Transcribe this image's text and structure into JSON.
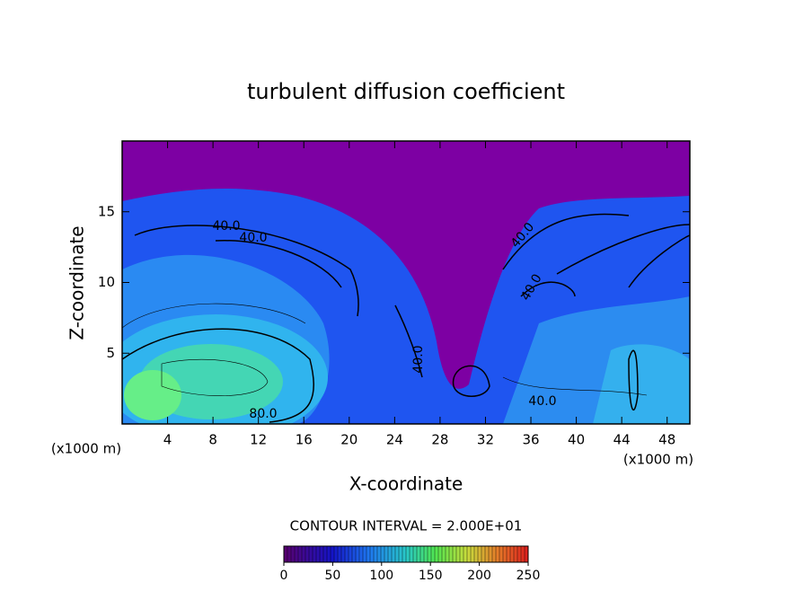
{
  "chart_data": {
    "type": "contour",
    "title": "turbulent diffusion coefficient",
    "x_label": "X-coordinate",
    "y_label": "Z-coordinate",
    "x_unit": "(x1000 m)",
    "y_unit": "(x1000 m)",
    "xlim": [
      0,
      50
    ],
    "xticks": [
      4,
      8,
      12,
      16,
      20,
      24,
      28,
      32,
      36,
      40,
      44,
      48
    ],
    "ylim": [
      0,
      20
    ],
    "yticks": [
      5,
      10,
      15
    ],
    "contour_interval": "CONTOUR INTERVAL = 2.000E+01",
    "contour_labels": [
      {
        "value": 40,
        "label": "40.0"
      },
      {
        "value": 40,
        "label": "40.0"
      },
      {
        "value": 40,
        "label": "40.0"
      },
      {
        "value": 40,
        "label": "40.0"
      },
      {
        "value": 40,
        "label": "40.0"
      },
      {
        "value": 40,
        "label": "40.0"
      },
      {
        "value": 80,
        "label": "80.0"
      }
    ],
    "colorbar": {
      "lim": [
        0,
        250
      ],
      "ticks": [
        0,
        50,
        100,
        150,
        200,
        250
      ]
    }
  }
}
